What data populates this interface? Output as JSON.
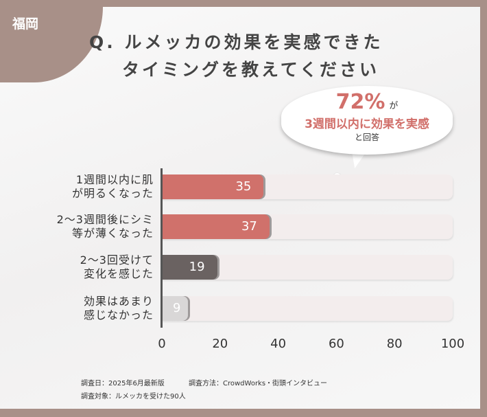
{
  "region": "福岡",
  "title": {
    "line1": "Q. ルメッカの効果を実感できた",
    "line2": "タイミングを教えてください"
  },
  "callout": {
    "percent": "72%",
    "ga": "が",
    "line2": "3週間以内に効果を実感",
    "line3": "と回答"
  },
  "chart_data": {
    "type": "bar",
    "orientation": "horizontal",
    "categories": [
      [
        "1週間以内に肌",
        "が明るくなった"
      ],
      [
        "2～3週間後にシミ",
        "等が薄くなった"
      ],
      [
        "2～3回受けて",
        "変化を感じた"
      ],
      [
        "効果はあまり",
        "感じなかった"
      ]
    ],
    "values": [
      35,
      37,
      19,
      9
    ],
    "colors": [
      "#d0716b",
      "#d0716b",
      "#6a6261",
      "#d9d7d7"
    ],
    "xlim": [
      0,
      100
    ],
    "xticks": [
      "0",
      "20",
      "40",
      "60",
      "80",
      "100"
    ]
  },
  "footnotes": {
    "date": "調査日：2025年6月最新版",
    "method": "調査方法：CrowdWorks・街頭インタビュー",
    "target": "調査対象：ルメッカを受けた90人"
  }
}
